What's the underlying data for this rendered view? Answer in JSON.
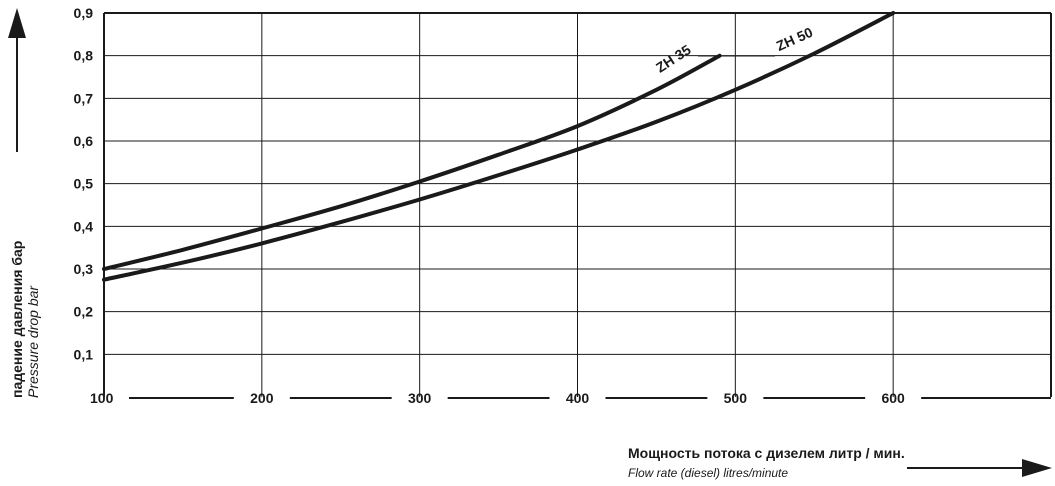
{
  "chart_data": {
    "type": "line",
    "xlabel": "Мощность потока с дизелем литр / мин.",
    "xlabel_en": "Flow rate (diesel) litres/minute",
    "ylabel": "падение давления бар",
    "ylabel_en": "Pressure drop  bar",
    "xlim": [
      100,
      700
    ],
    "ylim": [
      0,
      0.9
    ],
    "x_ticks": [
      "100",
      "200",
      "300",
      "400",
      "500",
      "600"
    ],
    "y_ticks": [
      "0,1",
      "0,2",
      "0,3",
      "0,4",
      "0,5",
      "0,6",
      "0,7",
      "0,8",
      "0,9"
    ],
    "grid": true,
    "series": [
      {
        "name": "ZH 35",
        "x": [
          100,
          150,
          200,
          250,
          300,
          350,
          400,
          450,
          490
        ],
        "y": [
          0.3,
          0.345,
          0.395,
          0.447,
          0.505,
          0.568,
          0.635,
          0.72,
          0.8
        ]
      },
      {
        "name": "ZH 50",
        "x": [
          100,
          150,
          200,
          250,
          300,
          350,
          400,
          450,
          500,
          550,
          600
        ],
        "y": [
          0.275,
          0.315,
          0.36,
          0.41,
          0.463,
          0.52,
          0.58,
          0.645,
          0.72,
          0.805,
          0.9
        ]
      }
    ],
    "colors": {
      "line": "#1a1a1a",
      "grid": "#1a1a1a"
    }
  }
}
